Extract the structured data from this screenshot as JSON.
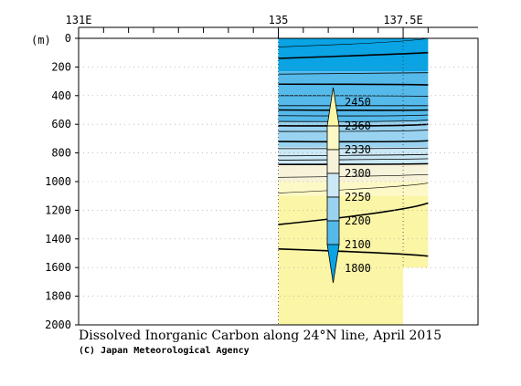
{
  "chart_data": {
    "type": "contour-section",
    "title": "Dissolved Inorganic Carbon along 24°N line, April 2015",
    "credit": "(C) Japan Meteorological Agency",
    "yunit": "(m)",
    "x_ticks": [
      "131E",
      "135",
      "137.5E"
    ],
    "x_tick_values": [
      131,
      135,
      137.5
    ],
    "xlim": [
      131,
      139
    ],
    "y_ticks": [
      0,
      200,
      400,
      600,
      800,
      1000,
      1200,
      1400,
      1600,
      1800,
      2000
    ],
    "ylim": [
      0,
      2000
    ],
    "y_inverted": true,
    "data_extent_lon": [
      135,
      138.0
    ],
    "bottom_depth_east_lon": 137.5,
    "bottom_depth_east": 1600,
    "legend": {
      "position": "right",
      "labels": [
        "2450",
        "2360",
        "2330",
        "2300",
        "2250",
        "2200",
        "2100",
        "1800"
      ],
      "colors": [
        "#fbf5a6",
        "#fdf9c6",
        "#f7f3da",
        "#cbe8f6",
        "#99d3f1",
        "#55b9ea",
        "#0aa3e3"
      ]
    },
    "bands": [
      {
        "range": "1800-2100",
        "depth_top": 0,
        "depth_bottom": 230,
        "color": "#0aa3e3"
      },
      {
        "range": "2100-2200",
        "depth_top": 230,
        "depth_bottom": 580,
        "color": "#55b9ea"
      },
      {
        "range": "2200-2250",
        "depth_top": 580,
        "depth_bottom": 760,
        "color": "#99d3f1"
      },
      {
        "range": "2250-2300",
        "depth_top": 760,
        "depth_bottom": 880,
        "color": "#cbe8f6"
      },
      {
        "range": "2300-2330",
        "depth_top": 880,
        "depth_bottom": 1000,
        "color": "#f7f3da"
      },
      {
        "range": "2330-2360",
        "depth_top": 1000,
        "depth_bottom": 1100,
        "color": "#fdf9c6"
      },
      {
        "range": "2360-2450",
        "depth_top": 1100,
        "depth_bottom": 2000,
        "color": "#fbf5a6"
      }
    ],
    "contours": [
      {
        "depths": [
          60,
          30,
          0
        ],
        "width": 0.6
      },
      {
        "depths": [
          140,
          110,
          100
        ],
        "width": 1.6
      },
      {
        "depths": [
          250,
          240,
          240
        ],
        "width": 0.8
      },
      {
        "depths": [
          320,
          320,
          325
        ],
        "width": 1.6
      },
      {
        "depths": [
          400,
          400,
          405
        ],
        "width": 0.8
      },
      {
        "depths": [
          470,
          470,
          470
        ],
        "width": 0.8
      },
      {
        "depths": [
          500,
          505,
          500
        ],
        "width": 1.6
      },
      {
        "depths": [
          540,
          545,
          535
        ],
        "width": 0.8
      },
      {
        "depths": [
          580,
          585,
          570
        ],
        "width": 0.8
      },
      {
        "depths": [
          610,
          615,
          600
        ],
        "width": 1.6
      },
      {
        "depths": [
          650,
          650,
          640
        ],
        "width": 0.8
      },
      {
        "depths": [
          720,
          725,
          715
        ],
        "width": 1.6
      },
      {
        "depths": [
          770,
          770,
          765
        ],
        "width": 0.8
      },
      {
        "depths": [
          820,
          815,
          810
        ],
        "width": 0.8
      },
      {
        "depths": [
          850,
          845,
          840
        ],
        "width": 0.8
      },
      {
        "depths": [
          880,
          880,
          875
        ],
        "width": 1.6
      },
      {
        "depths": [
          970,
          960,
          950
        ],
        "width": 0.6
      },
      {
        "depths": [
          1080,
          1040,
          1010
        ],
        "width": 0.6
      },
      {
        "depths": [
          1300,
          1210,
          1150
        ],
        "width": 1.6
      },
      {
        "depths": [
          1470,
          1500,
          1520
        ],
        "width": 1.6
      }
    ]
  }
}
